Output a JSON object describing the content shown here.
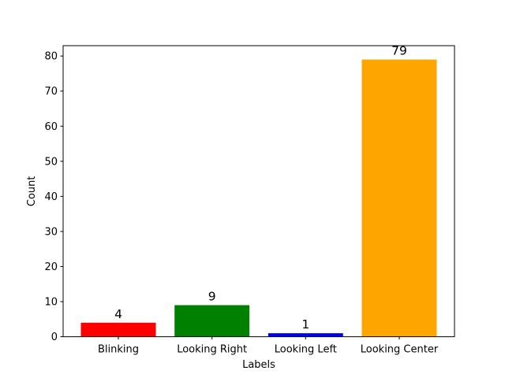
{
  "chart_data": {
    "type": "bar",
    "categories": [
      "Blinking",
      "Looking Right",
      "Looking Left",
      "Looking Center"
    ],
    "values": [
      4,
      9,
      1,
      79
    ],
    "colors": [
      "#ff0000",
      "#008000",
      "#0000ff",
      "#ffa500"
    ],
    "value_labels": [
      "4",
      "9",
      "1",
      "79"
    ],
    "xlabel": "Labels",
    "ylabel": "Count",
    "ylim": [
      0,
      82.95
    ],
    "yticks": [
      0,
      10,
      20,
      30,
      40,
      50,
      60,
      70,
      80
    ],
    "ytick_labels": [
      "0",
      "10",
      "20",
      "30",
      "40",
      "50",
      "60",
      "70",
      "80"
    ],
    "grid": false,
    "legend": false
  }
}
